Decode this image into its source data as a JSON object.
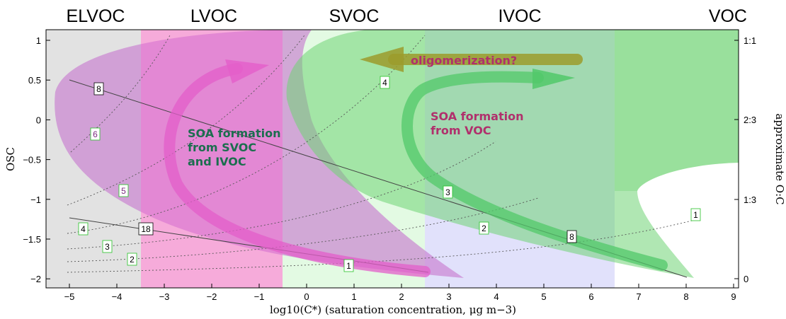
{
  "diagram": {
    "volatility_classes": [
      "ELVOC",
      "LVOC",
      "SVOC",
      "IVOC",
      "VOC"
    ],
    "x_axis": {
      "label": "log10(C*) (saturation concentration, μg m−3)",
      "ticks": [
        "−5",
        "−4",
        "−3",
        "−2",
        "−1",
        "0",
        "1",
        "2",
        "3",
        "4",
        "5",
        "6",
        "7",
        "8",
        "9"
      ]
    },
    "y_axis_left": {
      "label": "OSC",
      "ticks": [
        "1",
        "0.5",
        "0",
        "−0.5",
        "−1",
        "−1.5",
        "−2"
      ]
    },
    "y_axis_right": {
      "label": "approximate O:C",
      "ticks": [
        "1:1",
        "2:3",
        "1:3",
        "0"
      ]
    },
    "annotations": {
      "oligomerization": "oligomerization?",
      "svoc_line1": "SOA formation",
      "svoc_line2": "from SVOC",
      "svoc_line3": "and IVOC",
      "voc_line1": "SOA formation",
      "voc_line2": "from VOC"
    },
    "carbon_labels": {
      "black_8a": "8",
      "black_18": "18",
      "black_8b": "8",
      "purple_6": "6",
      "purple_5": "5",
      "purple_4": "4",
      "green_3": "3",
      "green_2": "2",
      "green_1a": "1",
      "green_4": "4",
      "green_3b": "3",
      "green_2b": "2",
      "green_1b": "1"
    },
    "colors": {
      "elvoc_band": "#e2e2e2",
      "lvoc_band": "#fde1e1",
      "svoc_band": "#e3fae3",
      "ivoc_band": "#e1e1fb",
      "purple_region": "#c77cd0",
      "magenta_band": "#ee6bd2",
      "green_region": "#7ed682",
      "oligomer_arrow": "#9c9b2c"
    }
  }
}
